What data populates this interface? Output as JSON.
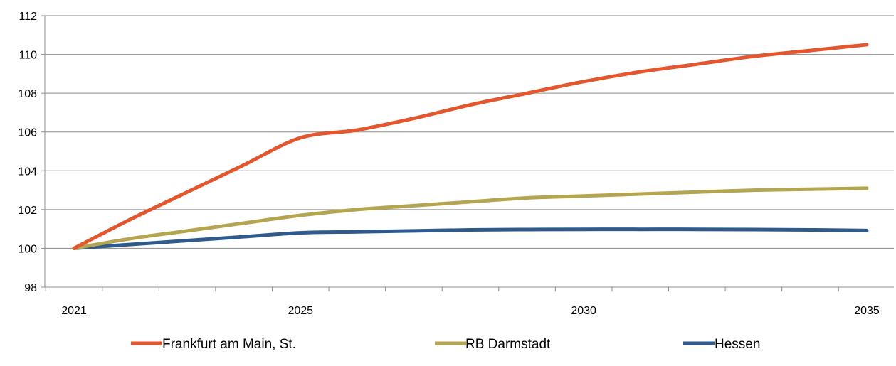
{
  "chart_data": {
    "type": "line",
    "title": "",
    "xlabel": "",
    "ylabel": "",
    "x": [
      2021,
      2022,
      2023,
      2024,
      2025,
      2026,
      2027,
      2028,
      2029,
      2030,
      2031,
      2032,
      2033,
      2034,
      2035
    ],
    "x_tick_labels": [
      "2021",
      "2025",
      "2030",
      "2035"
    ],
    "y_tick_labels": [
      "98",
      "100",
      "102",
      "104",
      "106",
      "108",
      "110",
      "112"
    ],
    "ylim": [
      98,
      112
    ],
    "grid": "horizontal",
    "legend_position": "bottom",
    "series": [
      {
        "name": "Frankfurt am Main, St.",
        "color": "#E4572E",
        "values": [
          100.0,
          101.5,
          102.9,
          104.3,
          105.7,
          106.1,
          106.7,
          107.4,
          108.0,
          108.6,
          109.1,
          109.5,
          109.9,
          110.2,
          110.5
        ]
      },
      {
        "name": "RB Darmstadt",
        "color": "#B5A550",
        "values": [
          100.0,
          100.5,
          100.9,
          101.3,
          101.7,
          102.0,
          102.2,
          102.4,
          102.6,
          102.7,
          102.8,
          102.9,
          103.0,
          103.05,
          103.1
        ]
      },
      {
        "name": "Hessen",
        "color": "#2E5B8C",
        "values": [
          100.0,
          100.2,
          100.4,
          100.6,
          100.8,
          100.85,
          100.9,
          100.95,
          100.97,
          100.98,
          100.98,
          100.98,
          100.97,
          100.95,
          100.92
        ]
      }
    ]
  }
}
